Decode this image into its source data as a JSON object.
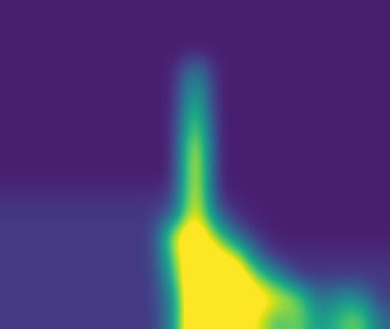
{
  "chart_data": {
    "type": "heatmap",
    "color": "viridis",
    "tick_labels": false,
    "grid": false,
    "color_range": [
      0,
      6
    ],
    "cells": [
      [
        0.5,
        0.5,
        0.5,
        0.5,
        0.5,
        0.5,
        0.5,
        0.5,
        0.5,
        0.5,
        0.5,
        0.5,
        0.5,
        0.5,
        0.5,
        0.5,
        0.5,
        0.5,
        0.5
      ],
      [
        0.5,
        0.5,
        0.5,
        0.5,
        0.5,
        0.5,
        0.5,
        0.5,
        0.5,
        0.5,
        0.5,
        0.5,
        0.5,
        0.5,
        0.5,
        0.5,
        0.5,
        0.5,
        0.5
      ],
      [
        0.5,
        0.5,
        0.5,
        0.5,
        0.5,
        0.5,
        0.5,
        0.5,
        0.5,
        0.5,
        0.5,
        0.5,
        0.5,
        0.5,
        0.5,
        0.5,
        0.5,
        0.5,
        0.5
      ],
      [
        0.5,
        0.5,
        0.5,
        0.5,
        0.5,
        0.5,
        0.5,
        0.5,
        0.5,
        3,
        0.5,
        0.5,
        0.5,
        0.5,
        0.5,
        0.5,
        0.5,
        0.5,
        0.5
      ],
      [
        0.5,
        0.5,
        0.5,
        0.5,
        0.5,
        0.5,
        0.5,
        0.5,
        0.5,
        4,
        0.5,
        0.5,
        0.5,
        0.5,
        0.5,
        0.5,
        0.5,
        0.5,
        0.5
      ],
      [
        0.5,
        0.5,
        0.5,
        0.5,
        0.5,
        0.5,
        0.5,
        0.5,
        0.5,
        5,
        0.5,
        0.5,
        0.5,
        0.5,
        0.5,
        0.5,
        0.5,
        0.5,
        0.5
      ],
      [
        0.5,
        0.5,
        0.5,
        0.5,
        0.5,
        0.5,
        0.5,
        0.5,
        0.5,
        6,
        0.5,
        0.5,
        0.5,
        0.5,
        0.5,
        0.5,
        0.5,
        0.5,
        0.5
      ],
      [
        0.5,
        0.5,
        0.5,
        0.5,
        0.5,
        0.5,
        0.5,
        0.5,
        0.5,
        7,
        0.5,
        0.5,
        0.5,
        0.5,
        0.5,
        0.5,
        0.5,
        0.5,
        0.5
      ],
      [
        0.5,
        0.5,
        0.5,
        0.5,
        0.5,
        0.5,
        0.5,
        0.5,
        0.5,
        7,
        0.5,
        0.5,
        0.5,
        0.5,
        0.5,
        0.5,
        0.5,
        0.5,
        0.5
      ],
      [
        0.8,
        0.8,
        0.8,
        0.8,
        0.8,
        0.8,
        0.8,
        0.8,
        1,
        7,
        0.8,
        0.5,
        0.5,
        0.5,
        0.5,
        0.5,
        0.5,
        0.5,
        0.5
      ],
      [
        1,
        1,
        1,
        1,
        1,
        1,
        1,
        1,
        2,
        7,
        2,
        0.8,
        0.5,
        0.5,
        0.5,
        0.5,
        0.5,
        0.5,
        0.5
      ],
      [
        1,
        1,
        1,
        1,
        1,
        1,
        1,
        1,
        6,
        8,
        5,
        2,
        0.8,
        0.5,
        0.5,
        0.5,
        0.5,
        0.5,
        0.5
      ],
      [
        1,
        1,
        1,
        1,
        1,
        1,
        1,
        1,
        5,
        8,
        7,
        6,
        2,
        0.8,
        0.8,
        0.8,
        0.8,
        0.8,
        0.8
      ],
      [
        1,
        1,
        1,
        1,
        1,
        1,
        1,
        1,
        4,
        9,
        9,
        8,
        5,
        3,
        1,
        1,
        1,
        1,
        1
      ],
      [
        1,
        1,
        1,
        1,
        1,
        1,
        1,
        1,
        3,
        9,
        9,
        8,
        7,
        6,
        5,
        2,
        3,
        3,
        1
      ],
      [
        1,
        1,
        1,
        1,
        1,
        1,
        1,
        1,
        3,
        9,
        9,
        7,
        6,
        4,
        5,
        3,
        4,
        5,
        2
      ]
    ]
  }
}
